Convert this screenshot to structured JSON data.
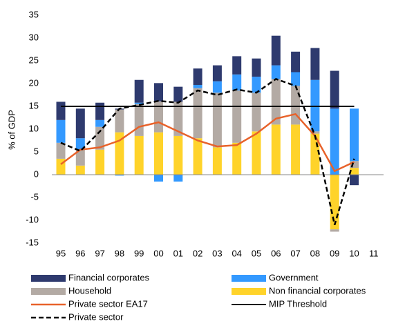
{
  "chart_data": {
    "type": "bar",
    "y_label": "% of GDP",
    "categories": [
      "95",
      "96",
      "97",
      "98",
      "99",
      "00",
      "01",
      "02",
      "03",
      "04",
      "05",
      "06",
      "07",
      "08",
      "09",
      "10",
      "11"
    ],
    "series": [
      {
        "name": "Non financial corporates",
        "kind": "bar",
        "color": "#ffd32a",
        "values": [
          3.5,
          2,
          5.5,
          9.3,
          8.5,
          9.3,
          8.5,
          8,
          6,
          7,
          9.5,
          11,
          11,
          9,
          -12,
          1.5,
          null
        ]
      },
      {
        "name": "Household",
        "kind": "bar",
        "color": "#b3aaa4",
        "values": [
          3.5,
          3.5,
          5,
          5,
          7,
          6.8,
          7.5,
          11,
          12,
          11.5,
          8.5,
          10,
          8.5,
          0.5,
          -0.5,
          1.5,
          null
        ]
      },
      {
        "name": "Government",
        "kind": "bar",
        "color": "#3399ff",
        "values": [
          5,
          2.5,
          1.5,
          -0.2,
          0.3,
          -1.5,
          -1.5,
          0.7,
          2.5,
          3.5,
          3.5,
          3,
          3,
          11.3,
          14.5,
          11.5,
          null
        ]
      },
      {
        "name": "Financial corporates",
        "kind": "bar",
        "color": "#2e3a6e",
        "values": [
          4,
          6.5,
          3.8,
          0.2,
          5,
          4,
          3.3,
          3.6,
          3.5,
          4,
          4,
          6.5,
          4.5,
          7,
          8.3,
          -2.3,
          null
        ]
      },
      {
        "name": "Private sector EA17",
        "kind": "line",
        "color": "#e8622a",
        "values": [
          2.3,
          5.5,
          6,
          7.5,
          10.5,
          11.5,
          9.5,
          7.5,
          6.2,
          6.5,
          9,
          12.3,
          13.3,
          8.5,
          0.8,
          2.8,
          null
        ]
      },
      {
        "name": "MIP Threshold",
        "kind": "line",
        "color": "#000000",
        "values": [
          15,
          15,
          15,
          15,
          15,
          15,
          15,
          15,
          15,
          15,
          15,
          15,
          15,
          15,
          15,
          15,
          null
        ]
      },
      {
        "name": "Private sector",
        "kind": "dashed",
        "color": "#000000",
        "values": [
          7,
          5.2,
          9.5,
          14.5,
          15.3,
          16.2,
          15.8,
          18.5,
          17.5,
          18.7,
          18,
          21,
          19.5,
          8.5,
          -11,
          3.5,
          null
        ]
      }
    ],
    "legend_order": [
      3,
      2,
      1,
      0,
      4,
      5,
      6
    ],
    "ylim": [
      -15,
      35
    ],
    "yticks": [
      -15,
      -10,
      -5,
      0,
      5,
      10,
      15,
      20,
      25,
      30,
      35
    ]
  }
}
